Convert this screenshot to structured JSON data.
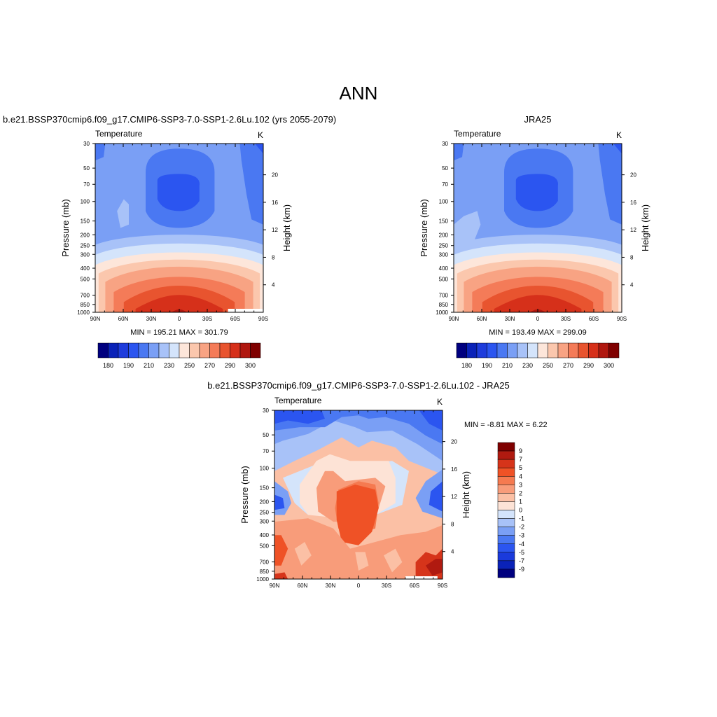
{
  "page": {
    "title": "ANN"
  },
  "panels": [
    {
      "id": "model",
      "case_title": "b.e21.BSSP370cmip6.f09_g17.CMIP6-SSP3-7.0-SSP1-2.6Lu.102 (yrs 2055-2079)",
      "left_string": "Temperature",
      "right_string": "K",
      "stats": "MIN = 195.21  MAX = 301.79"
    },
    {
      "id": "obs",
      "case_title": "JRA25",
      "left_string": "Temperature",
      "right_string": "K",
      "stats": "MIN = 193.49  MAX = 299.09"
    },
    {
      "id": "diff",
      "case_title": "b.e21.BSSP370cmip6.f09_g17.CMIP6-SSP3-7.0-SSP1-2.6Lu.102 - JRA25",
      "left_string": "Temperature",
      "right_string": "K",
      "stats": "MIN =  -8.81  MAX =   6.22"
    }
  ],
  "chart_data": [
    {
      "type": "heatmap",
      "title": "Temperature",
      "units": "K",
      "xlabel": "",
      "ylabel": "Pressure (mb)",
      "y2label": "Height (km)",
      "x_ticks": [
        "90N",
        "60N",
        "30N",
        "0",
        "30S",
        "60S",
        "90S"
      ],
      "y_ticks": [
        30,
        50,
        70,
        100,
        150,
        200,
        250,
        300,
        400,
        500,
        700,
        850,
        1000
      ],
      "y_scale": "log",
      "y2_ticks": [
        4,
        8,
        12,
        16,
        20
      ],
      "ylim": [
        1000,
        30
      ],
      "colorbar_levels": [
        "180",
        "190",
        "210",
        "230",
        "250",
        "270",
        "290",
        "300"
      ],
      "min": 195.21,
      "max": 301.79
    },
    {
      "type": "heatmap",
      "title": "Temperature",
      "units": "K",
      "xlabel": "",
      "ylabel": "Pressure (mb)",
      "y2label": "Height (km)",
      "x_ticks": [
        "90N",
        "60N",
        "30N",
        "0",
        "30S",
        "60S",
        "90S"
      ],
      "y_ticks": [
        30,
        50,
        70,
        100,
        150,
        200,
        250,
        300,
        400,
        500,
        700,
        850,
        1000
      ],
      "y_scale": "log",
      "y2_ticks": [
        4,
        8,
        12,
        16,
        20
      ],
      "ylim": [
        1000,
        30
      ],
      "colorbar_levels": [
        "180",
        "190",
        "210",
        "230",
        "250",
        "270",
        "290",
        "300"
      ],
      "min": 193.49,
      "max": 299.09
    },
    {
      "type": "heatmap",
      "title": "Temperature",
      "units": "K",
      "xlabel": "",
      "ylabel": "Pressure (mb)",
      "y2label": "Height (km)",
      "x_ticks": [
        "90N",
        "60N",
        "30N",
        "0",
        "30S",
        "60S",
        "90S"
      ],
      "y_ticks": [
        30,
        50,
        70,
        100,
        150,
        200,
        250,
        300,
        400,
        500,
        700,
        850,
        1000
      ],
      "y_scale": "log",
      "y2_ticks": [
        4,
        8,
        12,
        16,
        20
      ],
      "ylim": [
        1000,
        30
      ],
      "colorbar_levels": [
        "9",
        "7",
        "5",
        "4",
        "3",
        "2",
        "1",
        "0",
        "-1",
        "-2",
        "-3",
        "-4",
        "-5",
        "-7",
        "-9"
      ],
      "min": -8.81,
      "max": 6.22
    }
  ],
  "colors": {
    "abs_palette": [
      "#00007f",
      "#0a22b8",
      "#1e3cdc",
      "#2b55f0",
      "#4a78f2",
      "#7a9ff5",
      "#a8c2f8",
      "#d4e4fb",
      "#fde6da",
      "#fbc7ad",
      "#f8a383",
      "#f47b58",
      "#e8542f",
      "#d6301a",
      "#b0170f",
      "#7f0000"
    ],
    "diff_palette": [
      "#7f0000",
      "#b01a10",
      "#d6341a",
      "#ef5226",
      "#f57a50",
      "#f89c7a",
      "#fbc0a5",
      "#fde3d6",
      "#d4e4fb",
      "#a8c2f8",
      "#7a9ff5",
      "#4a78f2",
      "#2b55f0",
      "#1a3adc",
      "#0a22b8",
      "#00007f"
    ]
  }
}
